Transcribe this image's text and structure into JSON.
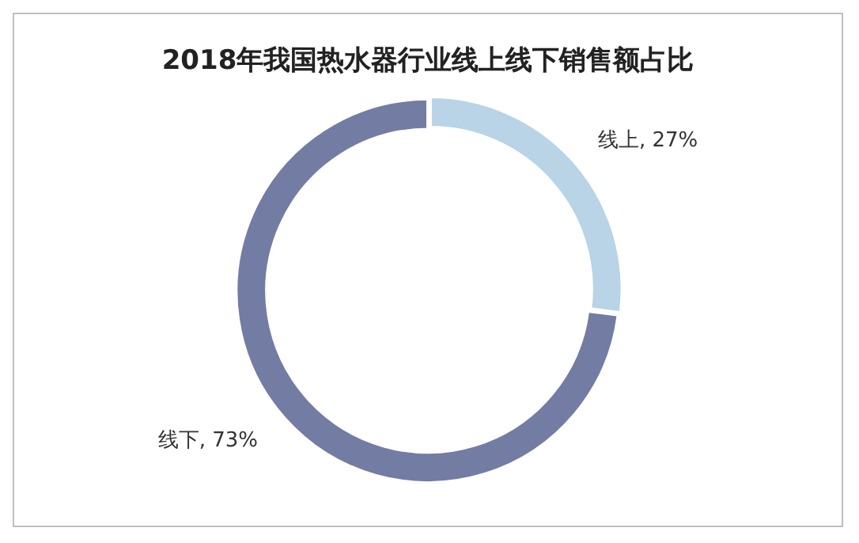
{
  "chart_data": {
    "type": "donut",
    "title": "2018年我国热水器行业线上线下销售额占比",
    "categories": [
      "线上",
      "线下"
    ],
    "values": [
      27,
      73
    ],
    "value_labels": [
      "27%",
      "73%"
    ],
    "colors": [
      "#b8d4e6",
      "#737ca3"
    ],
    "legend": false
  }
}
